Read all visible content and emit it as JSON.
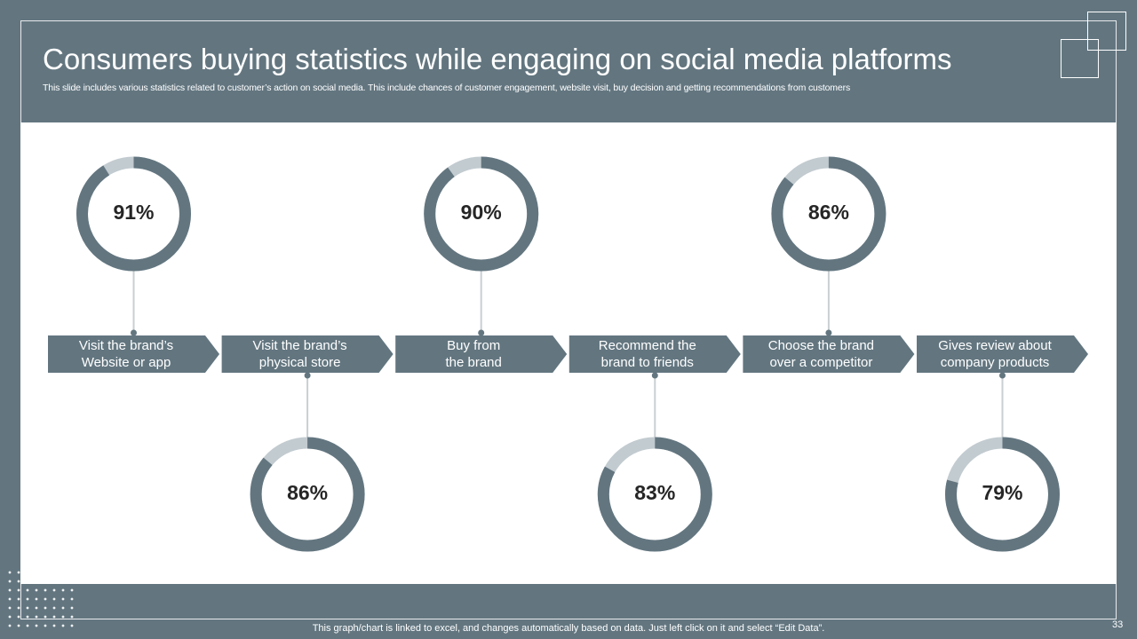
{
  "slide": {
    "title": "Consumers buying statistics while engaging on social media platforms",
    "subtitle": "This slide includes various statistics related to customer’s action on social media. This include chances of customer engagement, website visit, buy decision and getting recommendations from customers",
    "footer": "This graph/chart is linked to excel,  and changes automatically based on data. Just left click on it and select “Edit Data”.",
    "page_number": "33"
  },
  "colors": {
    "primary": "#637680",
    "light_segment": "#c2cbd0",
    "connector": "#c9cfd2",
    "text_dark": "#262626"
  },
  "chart_data": {
    "type": "donut",
    "categories": [
      [
        "Visit the brand’s",
        "Website or app"
      ],
      [
        "Visit the brand’s",
        "physical store"
      ],
      [
        "Buy from",
        "the brand"
      ],
      [
        "Recommend the",
        "brand to friends"
      ],
      [
        "Choose the brand",
        "over a competitor"
      ],
      [
        "Gives review about",
        "company products"
      ]
    ],
    "values": [
      91,
      86,
      90,
      83,
      86,
      79
    ],
    "labels": [
      "91%",
      "86%",
      "90%",
      "83%",
      "86%",
      "79%"
    ]
  }
}
